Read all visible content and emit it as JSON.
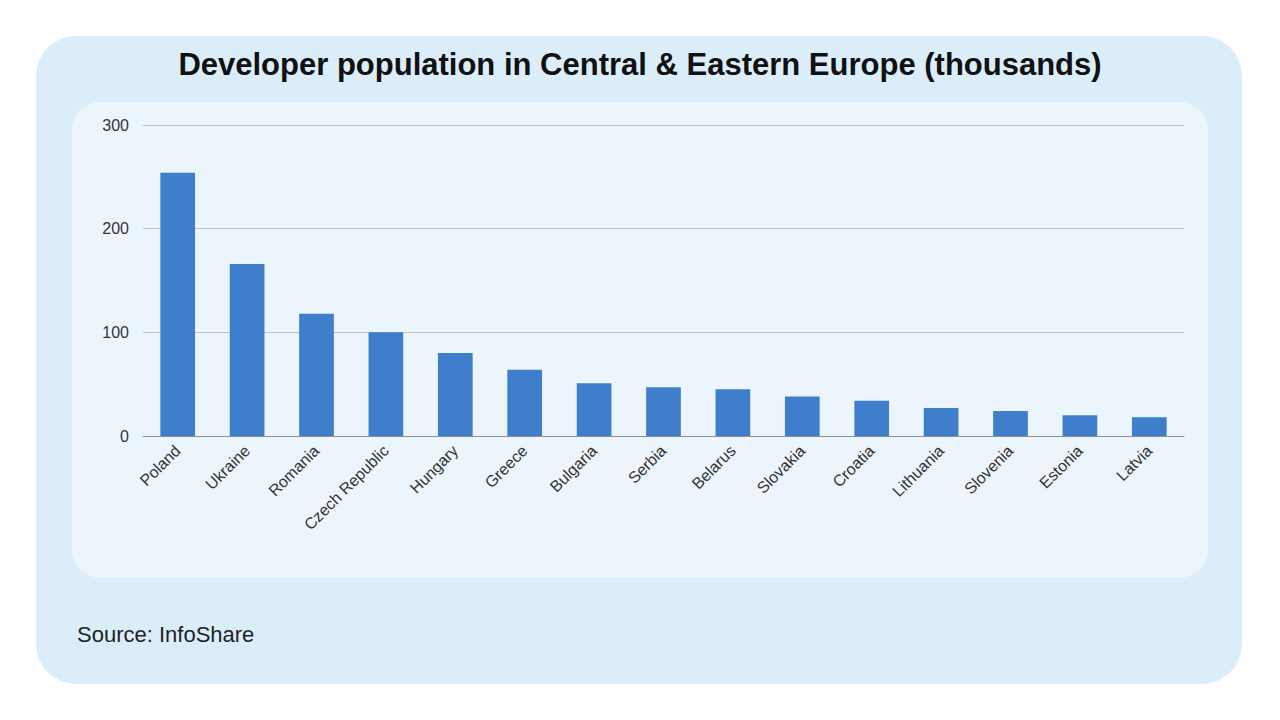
{
  "chart_data": {
    "type": "bar",
    "title": "Developer population in Central & Eastern Europe (thousands)",
    "source": "Source: InfoShare",
    "categories": [
      "Poland",
      "Ukraine",
      "Romania",
      "Czech Republic",
      "Hungary",
      "Greece",
      "Bulgaria",
      "Serbia",
      "Belarus",
      "Slovakia",
      "Croatia",
      "Lithuania",
      "Slovenia",
      "Estonia",
      "Latvia"
    ],
    "values": [
      254,
      166,
      118,
      100,
      80,
      64,
      51,
      47,
      45,
      38,
      34,
      27,
      24,
      20,
      18
    ],
    "color": "#3e7ecb",
    "ylim": [
      0,
      300
    ],
    "yticks": [
      0,
      100,
      200,
      300
    ],
    "grid": true
  }
}
